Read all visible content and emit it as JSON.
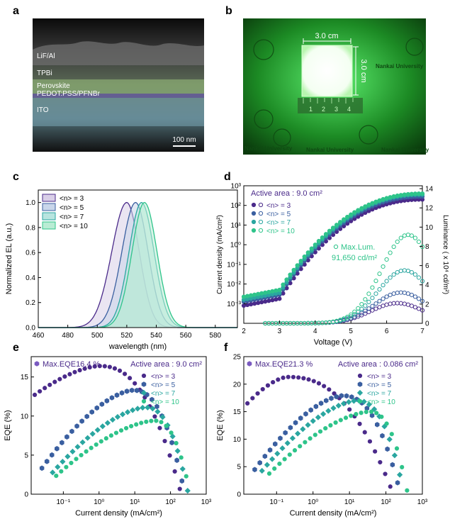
{
  "panels": {
    "a": {
      "label": "a",
      "layers": [
        "LiF/Al",
        "TPBi",
        "Perovskite",
        "PEDOT:PSS/PFNBr",
        "ITO"
      ],
      "scalebar": "100 nm"
    },
    "b": {
      "label": "b",
      "width_label": "3.0 cm",
      "height_label": "3.0 cm",
      "ruler_digits": [
        "1",
        "2",
        "3",
        "4"
      ],
      "university_text": [
        "Nankai University",
        "Nankai University",
        "Nankai University",
        "Nankai University"
      ],
      "colors": {
        "glow": "#39e85a",
        "background": "#0c2a0e"
      }
    }
  },
  "chart_data": [
    {
      "panel": "c",
      "type": "area",
      "xlabel": "wavelength (nm)",
      "ylabel": "Normalized EL (a.u.)",
      "xlim": [
        460,
        595
      ],
      "ylim": [
        0,
        1.1
      ],
      "xticks": [
        460,
        480,
        500,
        520,
        540,
        560,
        580
      ],
      "yticks": [
        "0.0",
        "0.2",
        "0.4",
        "0.6",
        "0.8",
        "1.0"
      ],
      "legend_position": "top-left",
      "series": [
        {
          "name": "<n> = 3",
          "peak": 520,
          "hwhm_left": 12,
          "hwhm_right": 10,
          "color": "#4a2a8a"
        },
        {
          "name": "<n> = 5",
          "peak": 526,
          "hwhm_left": 11,
          "hwhm_right": 10,
          "color": "#3a5fa0"
        },
        {
          "name": "<n> = 7",
          "peak": 530,
          "hwhm_left": 10,
          "hwhm_right": 10,
          "color": "#2aa6a0"
        },
        {
          "name": "<n> = 10",
          "peak": 532,
          "hwhm_left": 10,
          "hwhm_right": 10,
          "color": "#2ec48a"
        }
      ]
    },
    {
      "panel": "d",
      "type": "scatter",
      "xlabel": "Voltage (V)",
      "ylabel_left": "Current density (mA/cm²)",
      "ylabel_right": "Luminance ( x 10⁴ cd/m²)",
      "xlim": [
        2,
        7
      ],
      "ylim_left_log10": [
        -4,
        3
      ],
      "ylim_right": [
        0,
        14.3
      ],
      "xticks": [
        2,
        3,
        4,
        5,
        6,
        7
      ],
      "yticks_left": [
        "10⁻³",
        "10⁻²",
        "10⁻¹",
        "10⁰",
        "10¹",
        "10²",
        "10³"
      ],
      "yticks_right": [
        0,
        2,
        4,
        6,
        8,
        10,
        12,
        14
      ],
      "annotation_area": "Active area : 9.0 cm²",
      "annotation_max": [
        "Max.Lum.",
        "91,650 cd/m²"
      ],
      "series": [
        {
          "name": "<n> = 3",
          "color": "#4a2a8a",
          "j_at_2V": -3.1,
          "j_at_7V": 2.3,
          "lum_peak": 2.1
        },
        {
          "name": "<n> = 5",
          "color": "#3a5fa0",
          "j_at_2V": -2.9,
          "j_at_7V": 2.45,
          "lum_peak": 3.2
        },
        {
          "name": "<n> = 7",
          "color": "#2aa6a0",
          "j_at_2V": -2.8,
          "j_at_7V": 2.55,
          "lum_peak": 5.5
        },
        {
          "name": "<n> = 10",
          "color": "#2ec48a",
          "j_at_2V": -2.65,
          "j_at_7V": 2.6,
          "lum_peak": 9.2
        }
      ]
    },
    {
      "panel": "e",
      "type": "scatter",
      "xlabel": "Current density (mA/cm²)",
      "ylabel": "EQE (%)",
      "xlim_log10": [
        -1.9,
        3
      ],
      "ylim": [
        0,
        17.6
      ],
      "xticks": [
        "10⁻¹",
        "10⁰",
        "10¹",
        "10²",
        "10³"
      ],
      "yticks": [
        0,
        5,
        10,
        15
      ],
      "annotation_max": "Max.EQE16.4 %",
      "annotation_area": "Active area : 9.0 cm²",
      "series": [
        {
          "name": "<n> = 3",
          "color": "#4a2a8a",
          "x_range_log10": [
            -1.8,
            2.3
          ],
          "peak_x_log10": 0,
          "peak": 16.4
        },
        {
          "name": "<n> = 5",
          "color": "#3a5fa0",
          "x_range_log10": [
            -1.6,
            2.4
          ],
          "peak_x_log10": 0.95,
          "peak": 13.3
        },
        {
          "name": "<n> = 7",
          "color": "#2aa6a0",
          "x_range_log10": [
            -1.3,
            2.5
          ],
          "peak_x_log10": 1.3,
          "peak": 11.1
        },
        {
          "name": "<n> = 10",
          "color": "#2ec48a",
          "x_range_log10": [
            -1.2,
            2.55
          ],
          "peak_x_log10": 1.55,
          "peak": 9.4
        }
      ]
    },
    {
      "panel": "f",
      "type": "scatter",
      "xlabel": "Current density (mA/cm²)",
      "ylabel": "EQE (%)",
      "xlim_log10": [
        -1.9,
        3
      ],
      "ylim": [
        0,
        25
      ],
      "xticks": [
        "10⁻¹",
        "10⁰",
        "10¹",
        "10²",
        "10³"
      ],
      "yticks": [
        0,
        5,
        10,
        15,
        20,
        25
      ],
      "annotation_max": "Max.EQE21.3 %",
      "annotation_area": "Active area : 0.086 cm²",
      "series": [
        {
          "name": "<n> = 3",
          "color": "#4a2a8a",
          "x_range_log10": [
            -1.8,
            2.2
          ],
          "peak_x_log10": -0.7,
          "peak": 21.3
        },
        {
          "name": "<n> = 5",
          "color": "#3a5fa0",
          "x_range_log10": [
            -1.6,
            2.4
          ],
          "peak_x_log10": 0.8,
          "peak": 17.9
        },
        {
          "name": "<n> = 7",
          "color": "#2aa6a0",
          "x_range_log10": [
            -1.4,
            2.5
          ],
          "peak_x_log10": 1.2,
          "peak": 17.0
        },
        {
          "name": "<n> = 10",
          "color": "#2ec48a",
          "x_range_log10": [
            -1.2,
            2.6
          ],
          "peak_x_log10": 1.55,
          "peak": 15.0
        }
      ]
    }
  ]
}
